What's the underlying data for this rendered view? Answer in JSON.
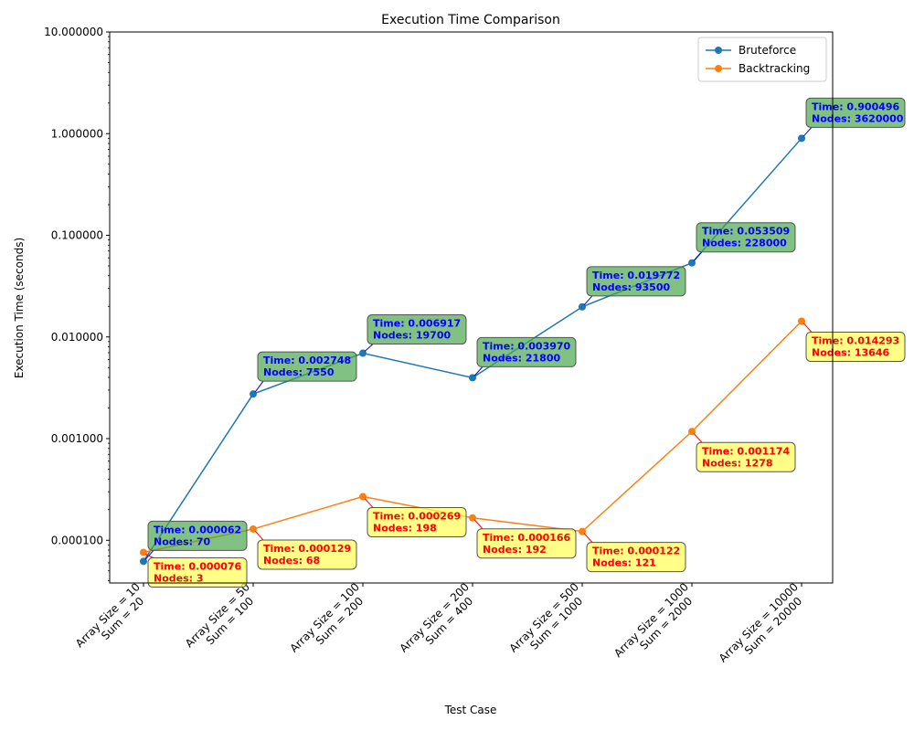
{
  "chart_data": {
    "type": "line",
    "title": "Execution Time Comparison",
    "xlabel": "Test Case",
    "ylabel": "Execution Time (seconds)",
    "y_scale": "log",
    "ylim": [
      3.8e-05,
      10
    ],
    "y_ticks": [
      "0.000100",
      "0.001000",
      "0.010000",
      "0.100000",
      "1.000000",
      "10.000000"
    ],
    "grid": false,
    "legend_position": "top-right",
    "categories": [
      [
        "Array Size = 10",
        "Sum = 20"
      ],
      [
        "Array Size = 50",
        "Sum = 100"
      ],
      [
        "Array Size = 100",
        "Sum = 200"
      ],
      [
        "Array Size = 200",
        "Sum = 400"
      ],
      [
        "Array Size = 500",
        "Sum = 1000"
      ],
      [
        "Array Size = 1000",
        "Sum = 2000"
      ],
      [
        "Array Size = 10000",
        "Sum = 20000"
      ]
    ],
    "series": [
      {
        "name": "Bruteforce",
        "color": "#1f77b4",
        "annotation_text_color": "#0000ff",
        "annotation_box_color": "#4ca64c",
        "times": [
          "0.000062",
          "0.002748",
          "0.006917",
          "0.003970",
          "0.019772",
          "0.053509",
          "0.900496"
        ],
        "nodes": [
          "70",
          "7550",
          "19700",
          "21800",
          "93500",
          "228000",
          "3620000"
        ]
      },
      {
        "name": "Backtracking",
        "color": "#ff7f0e",
        "annotation_text_color": "#ff0000",
        "annotation_box_color": "#ffff55",
        "times": [
          "0.000076",
          "0.000129",
          "0.000269",
          "0.000166",
          "0.000122",
          "0.001174",
          "0.014293"
        ],
        "nodes": [
          "3",
          "68",
          "198",
          "192",
          "121",
          "1278",
          "13646"
        ]
      }
    ],
    "annotation_time_prefix": "Time: ",
    "annotation_nodes_prefix": "Nodes: "
  }
}
